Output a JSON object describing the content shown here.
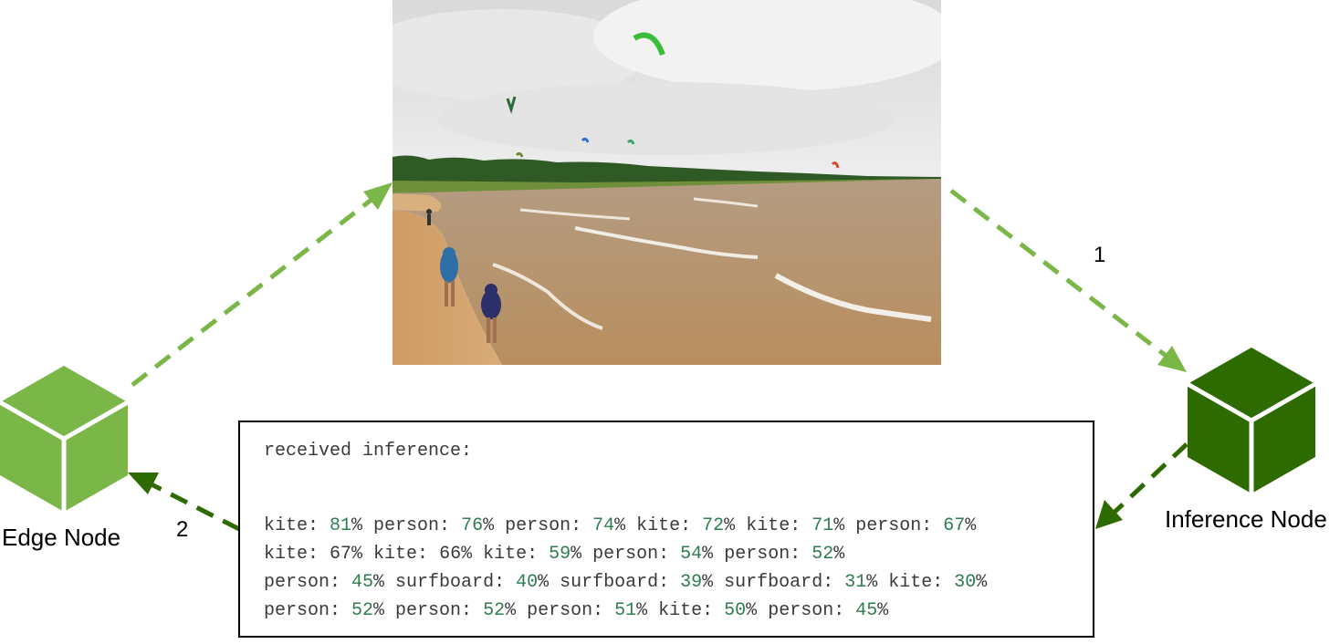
{
  "nodes": {
    "edge": {
      "label": "Edge Node",
      "color": "#7ab648"
    },
    "inference": {
      "label": "Inference Node",
      "color": "#2d6a00"
    }
  },
  "steps": {
    "one": "1",
    "two": "2"
  },
  "colors": {
    "light_arrow": "#7ab648",
    "dark_arrow": "#2d6a00",
    "highlight_number": "#2e7d4f"
  },
  "photo": {
    "icon": "beach-kite-photo"
  },
  "inference": {
    "title": "received inference:",
    "lines": [
      [
        {
          "label": "kite",
          "value": "81",
          "hl": true
        },
        {
          "label": "person",
          "value": "76",
          "hl": true
        },
        {
          "label": "person",
          "value": "74",
          "hl": true
        },
        {
          "label": "kite",
          "value": "72",
          "hl": true
        },
        {
          "label": "kite",
          "value": "71",
          "hl": true
        },
        {
          "label": "person",
          "value": "67",
          "hl": true
        }
      ],
      [
        {
          "label": "kite",
          "value": "67",
          "hl": false
        },
        {
          "label": "kite",
          "value": "66",
          "hl": false
        },
        {
          "label": "kite",
          "value": "59",
          "hl": true
        },
        {
          "label": "person",
          "value": "54",
          "hl": true
        },
        {
          "label": "person",
          "value": "52",
          "hl": true
        }
      ],
      [
        {
          "label": "person",
          "value": "45",
          "hl": true
        },
        {
          "label": "surfboard",
          "value": "40",
          "hl": true
        },
        {
          "label": "surfboard",
          "value": "39",
          "hl": true
        },
        {
          "label": "surfboard",
          "value": "31",
          "hl": true
        },
        {
          "label": "kite",
          "value": "30",
          "hl": true
        }
      ],
      [
        {
          "label": "person",
          "value": "52",
          "hl": true
        },
        {
          "label": "person",
          "value": "52",
          "hl": true
        },
        {
          "label": "person",
          "value": "51",
          "hl": true
        },
        {
          "label": "kite",
          "value": "50",
          "hl": true
        },
        {
          "label": "person",
          "value": "45",
          "hl": true
        }
      ]
    ]
  }
}
